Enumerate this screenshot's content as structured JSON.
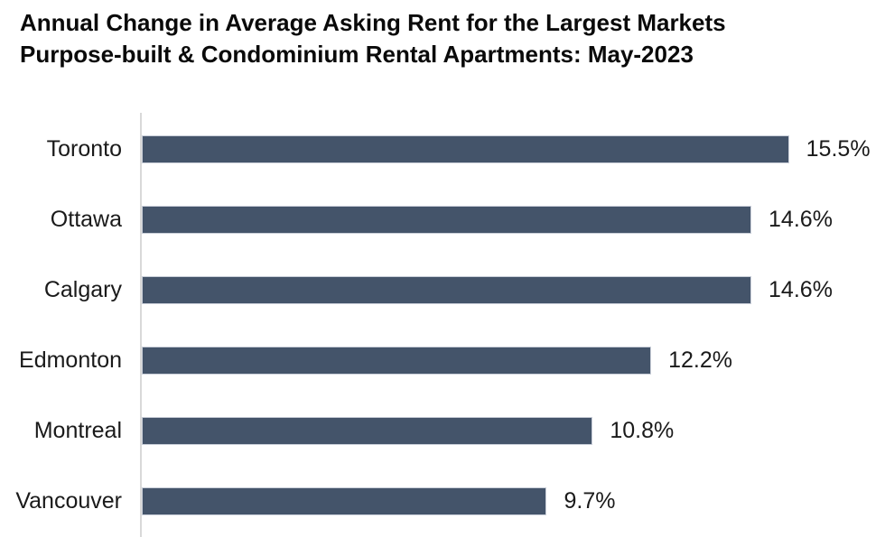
{
  "title": {
    "line1": "Annual Change in Average Asking Rent for the Largest Markets",
    "line2": "Purpose-built & Condominium Rental Apartments: May-2023"
  },
  "colors": {
    "bar_fill": "#44546A",
    "bar_border": "#C9CED8",
    "axis_line": "#D9D9D9",
    "title_text": "#0A0A0A",
    "label_text": "#1A1A1A",
    "background": "#FFFFFF"
  },
  "chart_data": {
    "type": "bar",
    "orientation": "horizontal",
    "title": "Annual Change in Average Asking Rent for the Largest Markets Purpose-built & Condominium Rental Apartments: May-2023",
    "categories": [
      "Toronto",
      "Ottawa",
      "Calgary",
      "Edmonton",
      "Montreal",
      "Vancouver"
    ],
    "values": [
      15.5,
      14.6,
      14.6,
      12.2,
      10.8,
      9.7
    ],
    "value_labels": [
      "15.5%",
      "14.6%",
      "14.6%",
      "12.2%",
      "10.8%",
      "9.7%"
    ],
    "xlabel": "",
    "ylabel": "",
    "xlim": [
      0,
      17.8
    ],
    "grid": false,
    "legend": false,
    "data_labels": "outside-end"
  }
}
